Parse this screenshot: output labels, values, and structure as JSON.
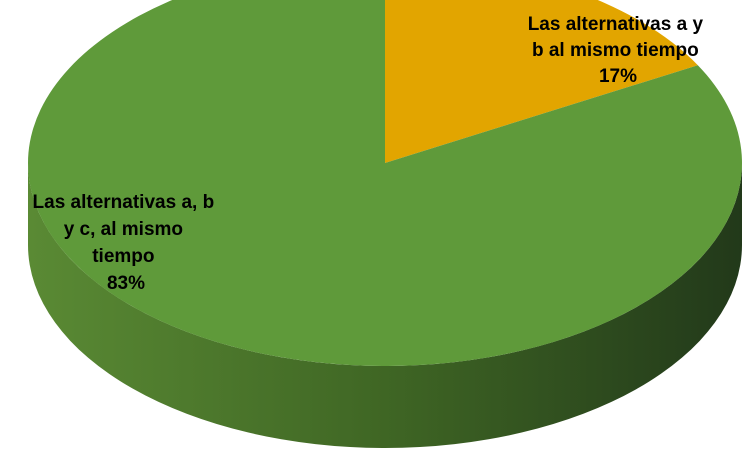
{
  "chart_data": {
    "type": "pie",
    "style": "3d",
    "title": "",
    "slices": [
      {
        "name": "Las alternativas a y b al mismo tiempo",
        "value": 17,
        "percent_label": "17%",
        "label_lines": [
          "Las alternativas a y",
          "b al mismo tiempo",
          "17%"
        ],
        "color": "#e2a500"
      },
      {
        "name": "Las alternativas a, b y c, al mismo tiempo",
        "value": 83,
        "percent_label": "83%",
        "label_lines": [
          "Las alternativas a, b",
          "y c, al mismo",
          "tiempo",
          "83%"
        ],
        "color": "#5f9a3a"
      }
    ],
    "legend": "none"
  }
}
